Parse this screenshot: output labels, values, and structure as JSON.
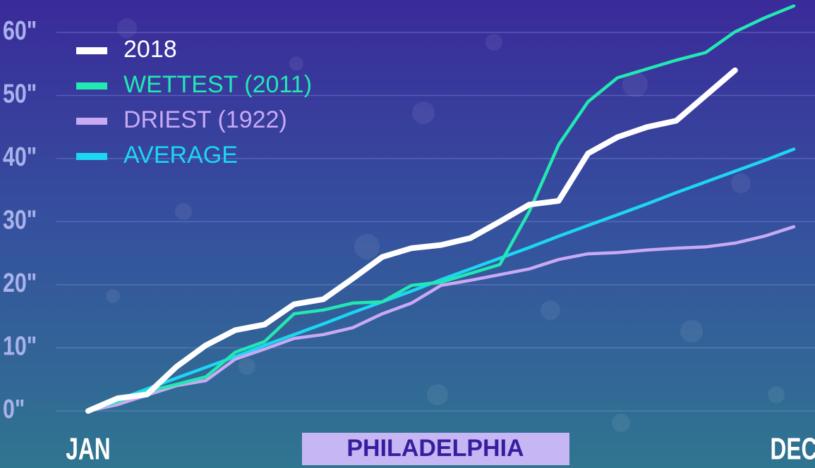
{
  "chart_data": {
    "type": "line",
    "title": "PHILADELPHIA",
    "categories": [
      "JAN",
      null,
      null,
      null,
      null,
      null,
      null,
      null,
      null,
      null,
      null,
      null,
      null,
      null,
      null,
      null,
      null,
      null,
      null,
      null,
      null,
      null,
      null,
      null,
      "DEC"
    ],
    "series": [
      {
        "name": "2018",
        "color": "#ffffff",
        "values": [
          0,
          2,
          2.6,
          7,
          10.4,
          12.8,
          13.7,
          16.9,
          17.7,
          21,
          24.4,
          25.8,
          26.3,
          27.4,
          30,
          32.7,
          33.3,
          40.8,
          43.4,
          45,
          46,
          50,
          54,
          null,
          null
        ]
      },
      {
        "name": "WETTEST (2011)",
        "color": "#22e8b2",
        "values": [
          0,
          1.5,
          3.1,
          4.2,
          5.4,
          9.3,
          11,
          15.4,
          16,
          17.1,
          17.3,
          19.9,
          20.4,
          21.8,
          23.2,
          31.6,
          42.2,
          49,
          52.8,
          54.2,
          55.6,
          56.8,
          60.1,
          62.3,
          64.2
        ]
      },
      {
        "name": "DRIEST (1922)",
        "color": "#c8a9f4",
        "values": [
          0,
          1,
          2.5,
          4,
          4.8,
          8.2,
          9.8,
          11.5,
          12.1,
          13.2,
          15.4,
          17.1,
          19.9,
          20.7,
          21.6,
          22.5,
          24,
          24.9,
          25.1,
          25.5,
          25.8,
          26,
          26.6,
          27.7,
          29.2
        ]
      },
      {
        "name": "AVERAGE",
        "color": "#1cd6f2",
        "values": [
          0,
          1.7,
          3.5,
          5.2,
          6.9,
          8.6,
          10.4,
          12.1,
          13.8,
          15.6,
          17.3,
          19,
          20.8,
          22.5,
          24.2,
          25.9,
          27.7,
          29.4,
          31.1,
          32.8,
          34.6,
          36.3,
          38,
          39.7,
          41.5
        ]
      }
    ],
    "ylim": [
      0,
      60
    ],
    "yticks": [
      {
        "value": 0,
        "label": "0\""
      },
      {
        "value": 10,
        "label": "10\""
      },
      {
        "value": 20,
        "label": "20\""
      },
      {
        "value": 30,
        "label": "30\""
      },
      {
        "value": 40,
        "label": "40\""
      },
      {
        "value": 50,
        "label": "50\""
      },
      {
        "value": 60,
        "label": "60\""
      }
    ],
    "grid": true,
    "legend": "top-left"
  }
}
